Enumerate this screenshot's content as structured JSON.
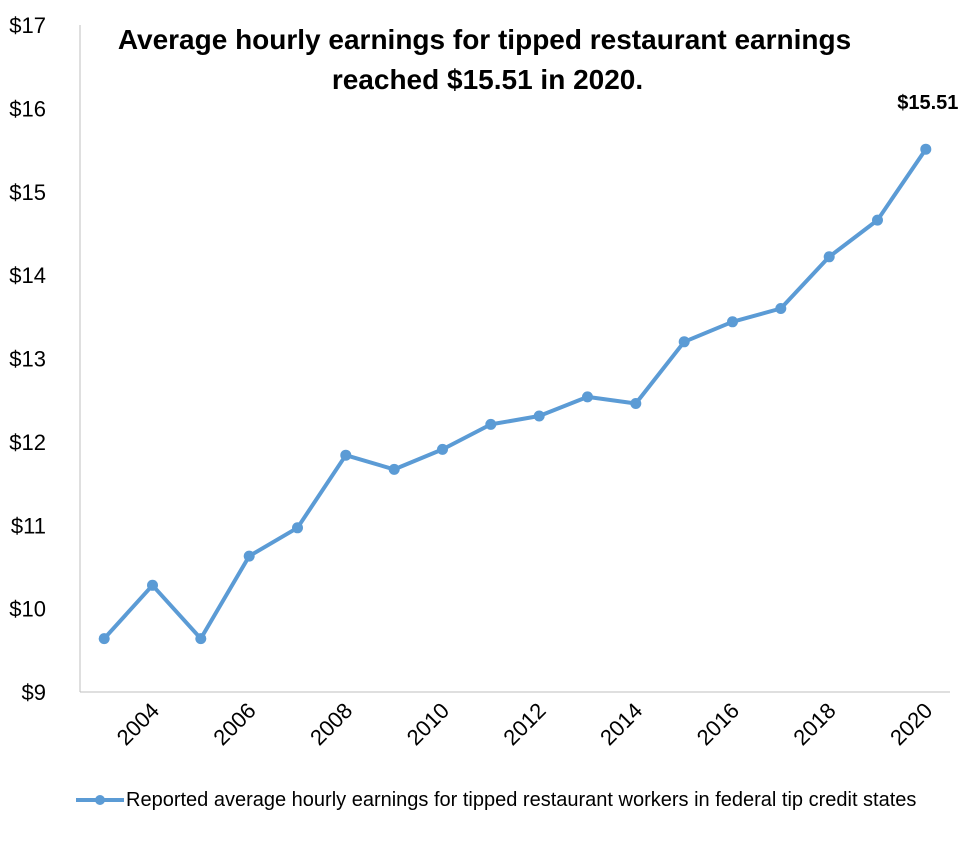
{
  "chart_data": {
    "type": "line",
    "title": "Average hourly earnings for tipped restaurant earnings",
    "subtitle": "reached $15.51 in 2020.",
    "xlabel": "",
    "ylabel": "",
    "x_ticks": [
      "2004",
      "2006",
      "2008",
      "2010",
      "2012",
      "2014",
      "2016",
      "2018",
      "2020"
    ],
    "y_ticks": [
      "$9",
      "$10",
      "$11",
      "$12",
      "$13",
      "$14",
      "$15",
      "$16",
      "$17"
    ],
    "ylim": [
      9,
      17
    ],
    "xlim": [
      2002.5,
      2020.5
    ],
    "grid": false,
    "legend_position": "bottom",
    "series": [
      {
        "name": "Reported average hourly earnings for tipped restaurant workers in federal tip credit states",
        "color": "#5B9BD5",
        "x": [
          2003,
          2004,
          2005,
          2006,
          2007,
          2008,
          2009,
          2010,
          2011,
          2012,
          2013,
          2014,
          2015,
          2016,
          2017,
          2018,
          2019,
          2020
        ],
        "values": [
          9.64,
          10.28,
          9.64,
          10.63,
          10.97,
          11.84,
          11.67,
          11.91,
          12.21,
          12.31,
          12.54,
          12.46,
          13.2,
          13.44,
          13.6,
          14.22,
          14.66,
          15.51
        ]
      }
    ],
    "annotations": [
      {
        "label": "$15.51",
        "x": 2020,
        "y": 15.51
      }
    ]
  }
}
